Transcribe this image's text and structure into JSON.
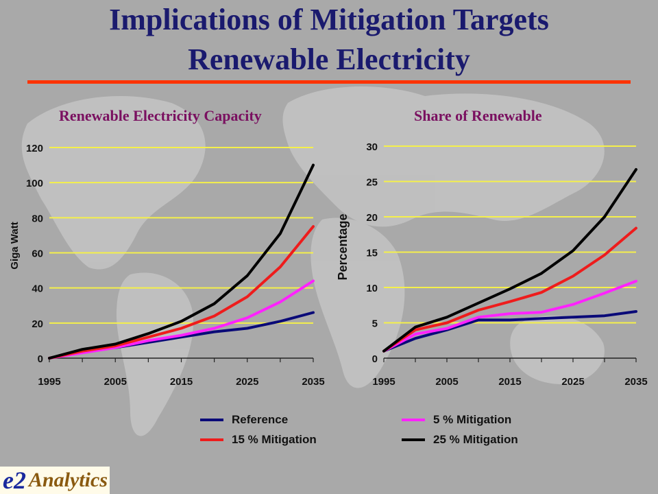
{
  "slide": {
    "title_line1": "Implications of Mitigation Targets",
    "title_line2": "Renewable Electricity",
    "colors": {
      "title": "#1a1a6e",
      "rule": "#ff3300",
      "chart_title": "#7a1060",
      "gridline": "#f5f04a"
    }
  },
  "legend": [
    {
      "label": "Reference",
      "color": "#0a0a78"
    },
    {
      "label": "5 % Mitigation",
      "color": "#ff22ff"
    },
    {
      "label": "15 % Mitigation",
      "color": "#ee1c1c"
    },
    {
      "label": "25 % Mitigation",
      "color": "#000000"
    }
  ],
  "logo": {
    "mark": "e2",
    "text": "Analytics"
  },
  "chart_data": [
    {
      "type": "line",
      "title": "Renewable Electricity Capacity",
      "xlabel": "",
      "ylabel": "Giga Watt",
      "x": [
        1995,
        2000,
        2005,
        2010,
        2015,
        2020,
        2025,
        2030,
        2035
      ],
      "x_ticks": [
        "1995",
        "2005",
        "2015",
        "2025",
        "2035"
      ],
      "y_ticks": [
        "0",
        "20",
        "40",
        "60",
        "80",
        "100",
        "120"
      ],
      "xlim": [
        1995,
        2035
      ],
      "ylim": [
        0,
        120
      ],
      "grid": true,
      "series": [
        {
          "name": "Reference",
          "color": "#0a0a78",
          "values": [
            0,
            4,
            6,
            9,
            12,
            15,
            17,
            21,
            26
          ]
        },
        {
          "name": "5 % Mitigation",
          "color": "#ff22ff",
          "values": [
            0,
            3,
            6,
            10,
            13,
            17,
            23,
            32,
            44
          ]
        },
        {
          "name": "15 % Mitigation",
          "color": "#ee1c1c",
          "values": [
            0,
            4,
            7,
            12,
            17,
            24,
            35,
            52,
            75
          ]
        },
        {
          "name": "25 % Mitigation",
          "color": "#000000",
          "values": [
            0,
            5,
            8,
            14,
            21,
            31,
            47,
            71,
            110
          ]
        }
      ]
    },
    {
      "type": "line",
      "title": "Share of Renewable",
      "xlabel": "",
      "ylabel": "Percentage",
      "x": [
        1995,
        2000,
        2005,
        2010,
        2015,
        2020,
        2025,
        2030,
        2035
      ],
      "x_ticks": [
        "1995",
        "2005",
        "2015",
        "2025",
        "2035"
      ],
      "y_ticks": [
        "0",
        "5",
        "10",
        "15",
        "20",
        "25",
        "30"
      ],
      "xlim": [
        1995,
        2035
      ],
      "ylim": [
        0,
        30
      ],
      "grid": true,
      "series": [
        {
          "name": "Reference",
          "color": "#0a0a78",
          "values": [
            1,
            2.8,
            4,
            5.4,
            5.4,
            5.6,
            5.8,
            6,
            6.6
          ]
        },
        {
          "name": "5 % Mitigation",
          "color": "#ff22ff",
          "values": [
            1,
            3.4,
            4.2,
            5.8,
            6.3,
            6.5,
            7.6,
            9.2,
            10.9
          ]
        },
        {
          "name": "15 % Mitigation",
          "color": "#ee1c1c",
          "values": [
            1,
            4,
            5,
            6.8,
            8,
            9.3,
            11.6,
            14.6,
            18.4
          ]
        },
        {
          "name": "25 % Mitigation",
          "color": "#000000",
          "values": [
            1,
            4.4,
            5.8,
            7.8,
            9.8,
            12,
            15.2,
            20,
            26.7
          ]
        }
      ]
    }
  ]
}
